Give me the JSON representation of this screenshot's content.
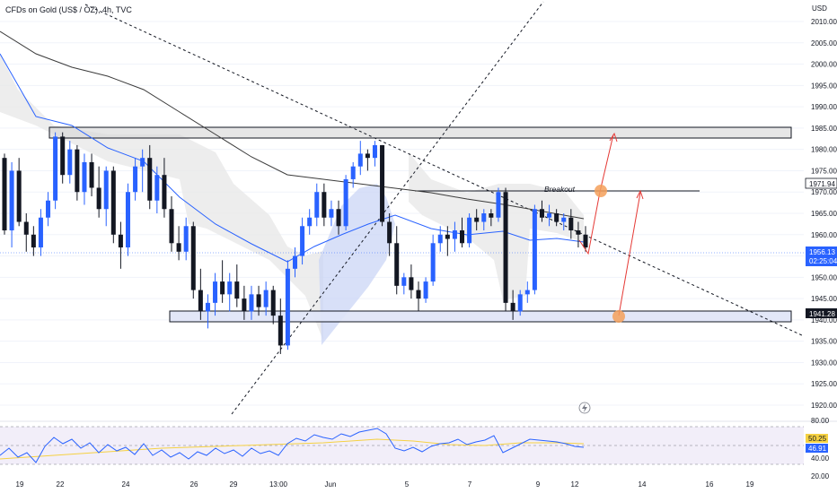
{
  "header": {
    "title": "CFDs on Gold (US$ / OZ), 4h, TVC",
    "currency": "USD"
  },
  "price_axis": {
    "ticks": [
      "2010.00",
      "2005.00",
      "2000.00",
      "1995.00",
      "1990.00",
      "1985.00",
      "1980.00",
      "1975.00",
      "1970.00",
      "1965.00",
      "1960.00",
      "1955.00",
      "1950.00",
      "1945.00",
      "1940.00",
      "1935.00",
      "1930.00",
      "1925.00",
      "1920.00"
    ],
    "tag_resistance": "1971.94",
    "tag_current_price": "1956.13",
    "tag_countdown": "02:25:04",
    "tag_support": "1941.28"
  },
  "rsi_axis": {
    "ticks": [
      "80.00",
      "40.00",
      "20.00"
    ],
    "tag_ma": "50.25",
    "tag_rsi": "46.91"
  },
  "time_axis": {
    "ticks": [
      "19",
      "22",
      "24",
      "26",
      "29",
      "13:00",
      "Jun",
      "5",
      "7",
      "9",
      "12",
      "14",
      "16",
      "19"
    ]
  },
  "annotations": {
    "breakout_label": "Breakout"
  },
  "colors": {
    "bull": "#2962ff",
    "bear": "#131722",
    "ma_long": "#3b3b3b",
    "ma_short": "#2962ff",
    "rsi_line": "#2962ff",
    "rsi_ma": "#f5d142",
    "arrow": "#e53935",
    "marker": "#f5a05a",
    "support_zone": "#dfe4f7"
  },
  "chart_data": {
    "type": "candlestick",
    "symbol": "CFDs on Gold (US$ / OZ), 4h, TVC",
    "ylim": [
      1918,
      2013
    ],
    "x_tick_labels": [
      "19",
      "22",
      "24",
      "26",
      "29",
      "13:00",
      "Jun",
      "5",
      "7",
      "9",
      "12",
      "14",
      "16",
      "19"
    ],
    "candles": [
      [
        1978,
        1979,
        1960,
        1961
      ],
      [
        1961,
        1977,
        1957,
        1975
      ],
      [
        1975,
        1978,
        1962,
        1963
      ],
      [
        1963,
        1965,
        1956,
        1960
      ],
      [
        1960,
        1962,
        1955,
        1957
      ],
      [
        1957,
        1966,
        1955,
        1964
      ],
      [
        1964,
        1970,
        1962,
        1968
      ],
      [
        1968,
        1984,
        1966,
        1983
      ],
      [
        1983,
        1984,
        1972,
        1974
      ],
      [
        1974,
        1982,
        1972,
        1980
      ],
      [
        1980,
        1981,
        1968,
        1970
      ],
      [
        1970,
        1979,
        1967,
        1977
      ],
      [
        1977,
        1979,
        1969,
        1971
      ],
      [
        1971,
        1976,
        1964,
        1966
      ],
      [
        1966,
        1976,
        1962,
        1975
      ],
      [
        1975,
        1976,
        1958,
        1960
      ],
      [
        1960,
        1963,
        1952,
        1957
      ],
      [
        1957,
        1972,
        1955,
        1970
      ],
      [
        1970,
        1978,
        1968,
        1976
      ],
      [
        1976,
        1980,
        1970,
        1978
      ],
      [
        1978,
        1981,
        1966,
        1968
      ],
      [
        1968,
        1976,
        1965,
        1974
      ],
      [
        1974,
        1978,
        1964,
        1966
      ],
      [
        1966,
        1969,
        1956,
        1958
      ],
      [
        1958,
        1962,
        1954,
        1956
      ],
      [
        1956,
        1964,
        1954,
        1962
      ],
      [
        1962,
        1963,
        1945,
        1947
      ],
      [
        1947,
        1952,
        1940,
        1942
      ],
      [
        1942,
        1946,
        1938,
        1944
      ],
      [
        1944,
        1951,
        1941,
        1949
      ],
      [
        1949,
        1954,
        1944,
        1946
      ],
      [
        1946,
        1951,
        1942,
        1949
      ],
      [
        1949,
        1953,
        1943,
        1945
      ],
      [
        1945,
        1948,
        1940,
        1942
      ],
      [
        1942,
        1948,
        1940,
        1946
      ],
      [
        1946,
        1948,
        1941,
        1943
      ],
      [
        1943,
        1949,
        1941,
        1947
      ],
      [
        1947,
        1948,
        1939,
        1941
      ],
      [
        1941,
        1945,
        1932,
        1934
      ],
      [
        1934,
        1954,
        1933,
        1952
      ],
      [
        1952,
        1957,
        1950,
        1955
      ],
      [
        1955,
        1964,
        1953,
        1962
      ],
      [
        1962,
        1966,
        1960,
        1964
      ],
      [
        1964,
        1972,
        1962,
        1970
      ],
      [
        1970,
        1972,
        1962,
        1964
      ],
      [
        1964,
        1968,
        1962,
        1966
      ],
      [
        1966,
        1968,
        1960,
        1962
      ],
      [
        1962,
        1974,
        1961,
        1973
      ],
      [
        1973,
        1977,
        1971,
        1976
      ],
      [
        1976,
        1982,
        1974,
        1979
      ],
      [
        1979,
        1980,
        1975,
        1978
      ],
      [
        1978,
        1982,
        1976,
        1981
      ],
      [
        1981,
        1981,
        1962,
        1963
      ],
      [
        1963,
        1965,
        1955,
        1958
      ],
      [
        1958,
        1962,
        1946,
        1948
      ],
      [
        1948,
        1951,
        1946,
        1950
      ],
      [
        1950,
        1953,
        1945,
        1947
      ],
      [
        1947,
        1949,
        1942,
        1945
      ],
      [
        1945,
        1950,
        1944,
        1949
      ],
      [
        1949,
        1960,
        1948,
        1958
      ],
      [
        1958,
        1962,
        1956,
        1960
      ],
      [
        1960,
        1962,
        1955,
        1959
      ],
      [
        1959,
        1963,
        1956,
        1961
      ],
      [
        1961,
        1964,
        1957,
        1958
      ],
      [
        1958,
        1965,
        1957,
        1964
      ],
      [
        1964,
        1966,
        1961,
        1963
      ],
      [
        1963,
        1966,
        1961,
        1965
      ],
      [
        1965,
        1966,
        1962,
        1964
      ],
      [
        1964,
        1971,
        1963,
        1970
      ],
      [
        1970,
        1971,
        1942,
        1944
      ],
      [
        1944,
        1947,
        1940,
        1942
      ],
      [
        1942,
        1947,
        1941,
        1946
      ],
      [
        1946,
        1949,
        1944,
        1947
      ],
      [
        1947,
        1967,
        1946,
        1966
      ],
      [
        1966,
        1968,
        1963,
        1964
      ],
      [
        1964,
        1967,
        1962,
        1965
      ],
      [
        1965,
        1966,
        1962,
        1963
      ],
      [
        1963,
        1965,
        1961,
        1964
      ],
      [
        1964,
        1966,
        1959,
        1961
      ],
      [
        1961,
        1963,
        1957,
        1960
      ],
      [
        1960,
        1962,
        1956,
        1957
      ]
    ],
    "rsi_ylim": [
      20,
      80
    ],
    "rsi_last": 46.91,
    "rsi_ma_last": 50.25,
    "levels": {
      "resistance": 1971.94,
      "current": 1956.13,
      "support": 1941.28
    }
  }
}
